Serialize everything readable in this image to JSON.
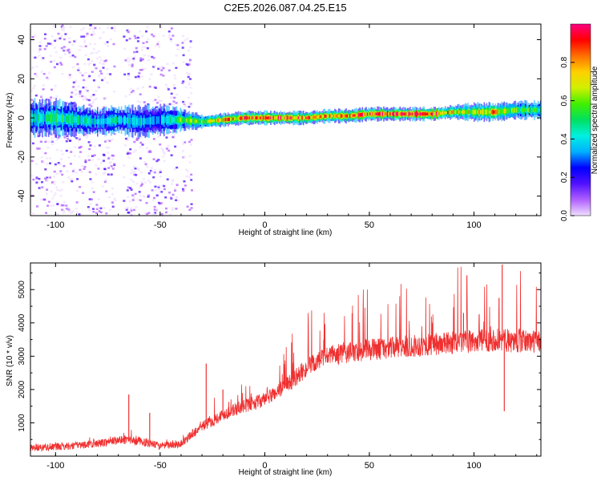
{
  "title": "C2E5.2026.087.04.25.E15",
  "chart_data": [
    {
      "type": "heatmap",
      "title": "C2E5.2026.087.04.25.E15",
      "xlabel": "Height of straight line (km)",
      "ylabel": "Frequency (Hz)",
      "xlim": [
        -112,
        132
      ],
      "ylim": [
        -50,
        48
      ],
      "xticks": [
        -100,
        -50,
        0,
        50,
        100
      ],
      "yticks": [
        -40,
        -20,
        0,
        20,
        40
      ],
      "colorbar": {
        "label": "Normalized spectral amplitude",
        "range": [
          0.0,
          1.0
        ],
        "ticks": [
          0.0,
          0.2,
          0.4,
          0.6,
          0.8
        ],
        "colors": [
          "#f0e0ff",
          "#b060ff",
          "#5010ff",
          "#0000ff",
          "#00b0ff",
          "#00f0e0",
          "#00e060",
          "#40f000",
          "#d0f000",
          "#ffd000",
          "#ff7000",
          "#ff0000",
          "#ff0080"
        ]
      },
      "ridge": {
        "x": [
          -112,
          -100,
          -90,
          -80,
          -70,
          -60,
          -50,
          -40,
          -30,
          -20,
          -10,
          0,
          10,
          20,
          30,
          40,
          50,
          60,
          70,
          80,
          90,
          100,
          110,
          120,
          132
        ],
        "frequency_hz": [
          0,
          0,
          -1,
          -2,
          -1,
          -2,
          -1,
          -1,
          -2,
          -1,
          0,
          0,
          0,
          0,
          1,
          1,
          2,
          2,
          2,
          2,
          3,
          3,
          3,
          4,
          4
        ],
        "amplitude": [
          0.45,
          0.5,
          0.45,
          0.4,
          0.42,
          0.4,
          0.35,
          0.55,
          0.6,
          0.75,
          0.85,
          0.9,
          0.9,
          0.8,
          0.8,
          0.85,
          0.9,
          0.95,
          0.95,
          0.9,
          0.75,
          0.7,
          0.8,
          0.55,
          0.5
        ],
        "half_width_hz": [
          8,
          8,
          7,
          6,
          6,
          7,
          7,
          5,
          3,
          3,
          3,
          3,
          3,
          3,
          3,
          3,
          3,
          3,
          3,
          3,
          3,
          4,
          4,
          4,
          4
        ]
      },
      "scatter_bands_x": [
        [
          -112,
          -72
        ],
        [
          -68,
          -42
        ],
        [
          -40,
          -35
        ]
      ]
    },
    {
      "type": "line",
      "xlabel": "Height of straight line (km)",
      "ylabel": "SNR (10 * v/v)",
      "xlim": [
        -112,
        132
      ],
      "ylim": [
        0,
        5800
      ],
      "xticks": [
        -100,
        -50,
        0,
        50,
        100
      ],
      "yticks": [
        1000,
        2000,
        3000,
        4000,
        5000
      ],
      "color": "#f03030",
      "trend": {
        "x": [
          -112,
          -100,
          -90,
          -80,
          -70,
          -60,
          -50,
          -40,
          -35,
          -30,
          -25,
          -20,
          -10,
          0,
          10,
          20,
          30,
          40,
          50,
          60,
          70,
          80,
          90,
          100,
          110,
          120,
          132
        ],
        "snr": [
          250,
          280,
          320,
          380,
          480,
          450,
          300,
          380,
          650,
          900,
          1050,
          1250,
          1500,
          1700,
          2100,
          2650,
          3000,
          3100,
          3200,
          3250,
          3300,
          3350,
          3400,
          3450,
          3500,
          3450,
          3450
        ]
      },
      "spikes": [
        {
          "x": -65,
          "snr": 1850
        },
        {
          "x": -55,
          "snr": 1300
        },
        {
          "x": -28,
          "snr": 2780
        },
        {
          "x": -20,
          "snr": 2000
        },
        {
          "x": 95,
          "snr": 4300
        },
        {
          "x": 112,
          "snr": 4750
        },
        {
          "x": 113.5,
          "snr": 5750
        },
        {
          "x": 114.5,
          "snr": 1350
        }
      ]
    }
  ]
}
